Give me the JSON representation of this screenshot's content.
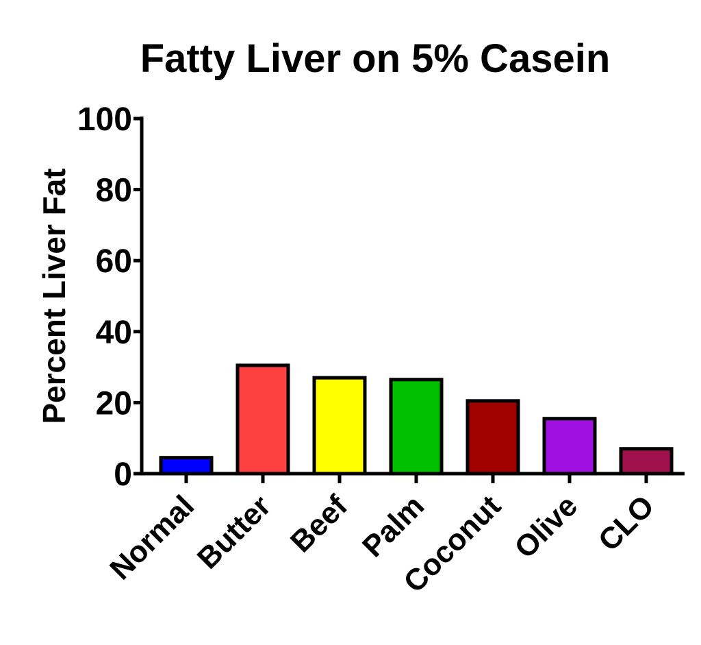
{
  "chart_data": {
    "type": "bar",
    "title": "Fatty Liver on 5% Casein",
    "y_label": "Percent Liver Fat",
    "categories": [
      "Normal",
      "Butter",
      "Beef",
      "Palm",
      "Coconut",
      "Olive",
      "CLO"
    ],
    "values": [
      4.5,
      30.5,
      27,
      26.5,
      20.5,
      15.5,
      7
    ],
    "colors": [
      "#0000ff",
      "#ff4040",
      "#ffff00",
      "#00c000",
      "#a00000",
      "#a010e0",
      "#a0104a"
    ],
    "ylim": [
      0,
      100
    ],
    "yticks": [
      0,
      20,
      40,
      60,
      80,
      100
    ],
    "grid": false
  }
}
